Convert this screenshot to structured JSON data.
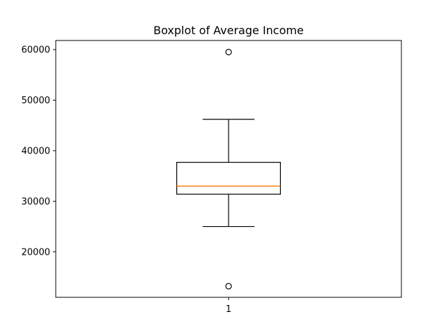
{
  "chart_data": {
    "type": "boxplot",
    "title": "Boxplot of Average Income",
    "xlabel": "",
    "ylabel": "",
    "categories": [
      "1"
    ],
    "boxes": [
      {
        "label": "1",
        "whisker_low": 25000,
        "q1": 31400,
        "median": 33000,
        "q3": 37700,
        "whisker_high": 46200,
        "outliers": [
          59500,
          13200
        ]
      }
    ],
    "ylim": [
      11000,
      61800
    ],
    "yticks": [
      20000,
      30000,
      40000,
      50000,
      60000
    ],
    "ytick_labels": [
      "20000",
      "30000",
      "40000",
      "50000",
      "60000"
    ],
    "grid": false,
    "colors": {
      "box": "#000000",
      "median": "#ff7f0e",
      "whisker": "#000000",
      "outlier": "#000000"
    }
  }
}
